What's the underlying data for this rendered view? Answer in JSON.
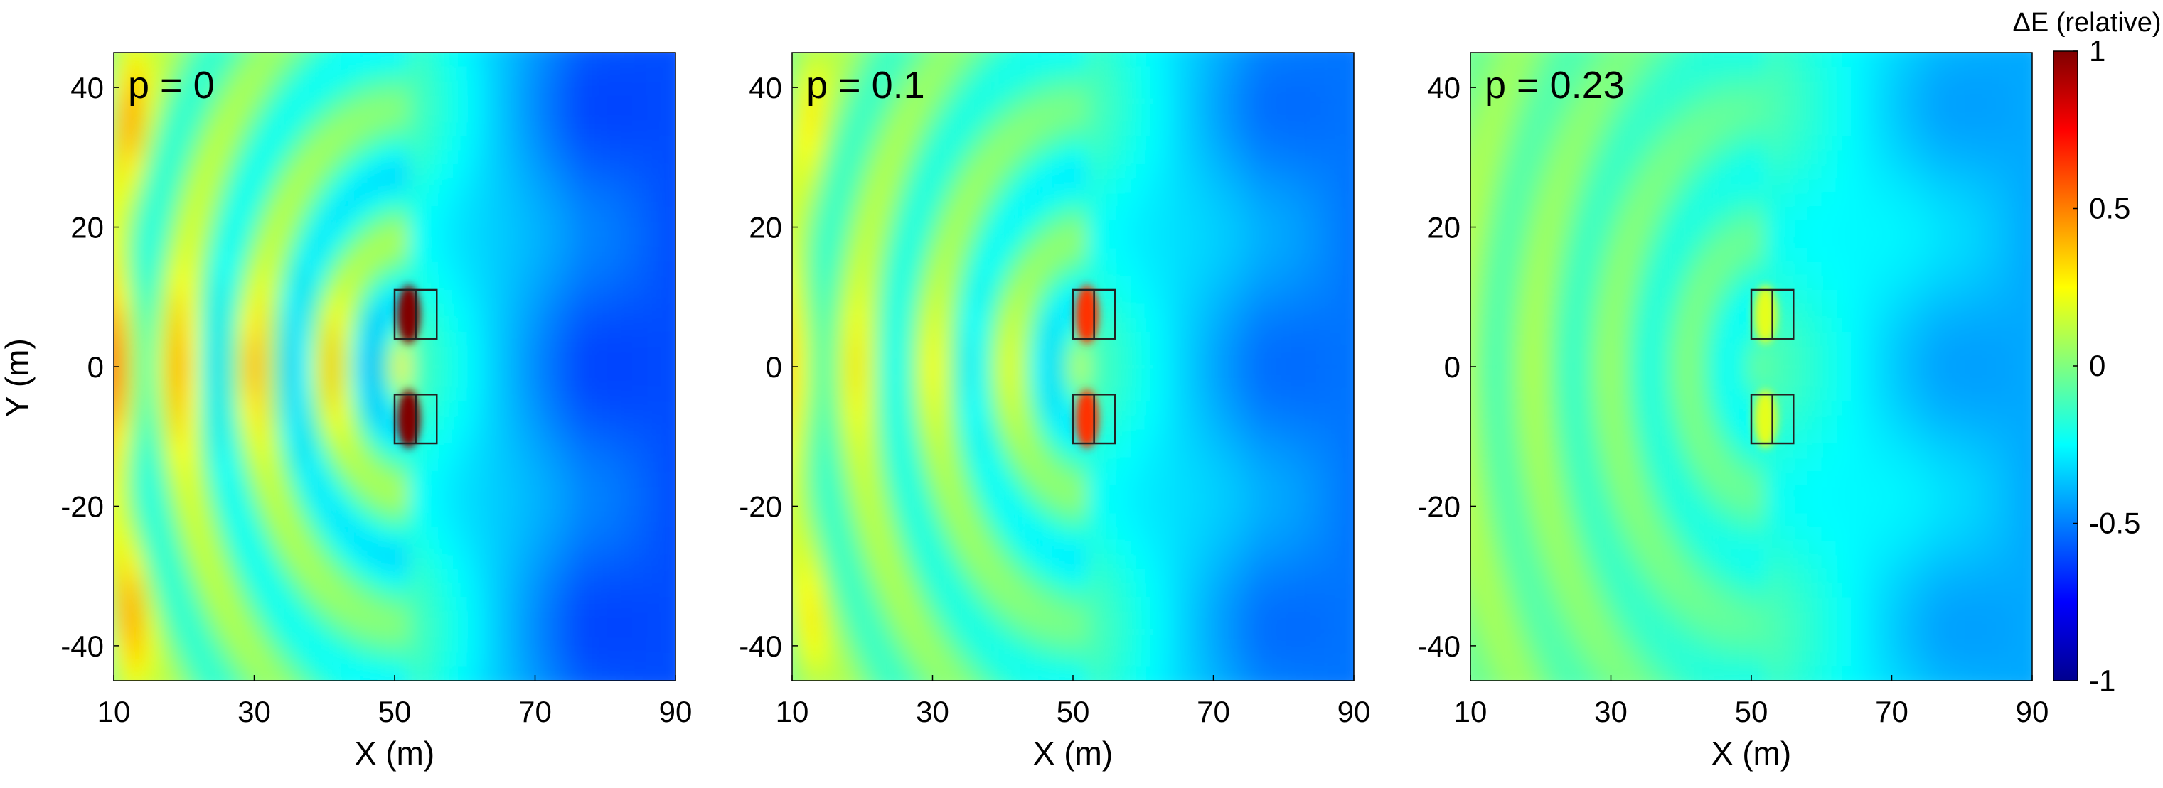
{
  "chart_data": [
    {
      "type": "heatmap",
      "title": "p = 0",
      "xlabel": "X (m)",
      "ylabel": "Y (m)",
      "xlim": [
        10,
        90
      ],
      "ylim": [
        -45,
        45
      ],
      "xticks": [
        "10",
        "30",
        "50",
        "70",
        "90"
      ],
      "yticks": [
        "40",
        "20",
        "0",
        "-20",
        "-40"
      ],
      "p": 0,
      "peak_value": 1.0,
      "wave_crest_x": [
        12,
        20,
        30,
        41
      ],
      "structures": [
        {
          "x_range": [
            50,
            56
          ],
          "y_range": [
            4,
            11
          ],
          "divider_x": 53
        },
        {
          "x_range": [
            50,
            56
          ],
          "y_range": [
            -11,
            -4
          ],
          "divider_x": 53
        }
      ]
    },
    {
      "type": "heatmap",
      "title": "p = 0.1",
      "xlabel": "X (m)",
      "ylabel": "",
      "xlim": [
        10,
        90
      ],
      "ylim": [
        -45,
        45
      ],
      "xticks": [
        "10",
        "30",
        "50",
        "70",
        "90"
      ],
      "yticks": [
        "40",
        "20",
        "0",
        "-20",
        "-40"
      ],
      "p": 0.1,
      "peak_value": 0.65,
      "structures": [
        {
          "x_range": [
            50,
            56
          ],
          "y_range": [
            4,
            11
          ],
          "divider_x": 53
        },
        {
          "x_range": [
            50,
            56
          ],
          "y_range": [
            -11,
            -4
          ],
          "divider_x": 53
        }
      ]
    },
    {
      "type": "heatmap",
      "title": "p = 0.23",
      "xlabel": "X (m)",
      "ylabel": "",
      "xlim": [
        10,
        90
      ],
      "ylim": [
        -45,
        45
      ],
      "xticks": [
        "10",
        "30",
        "50",
        "70",
        "90"
      ],
      "yticks": [
        "40",
        "20",
        "0",
        "-20",
        "-40"
      ],
      "p": 0.23,
      "peak_value": 0.2,
      "structures": [
        {
          "x_range": [
            50,
            56
          ],
          "y_range": [
            4,
            11
          ],
          "divider_x": 53
        },
        {
          "x_range": [
            50,
            56
          ],
          "y_range": [
            -11,
            -4
          ],
          "divider_x": 53
        }
      ]
    }
  ],
  "colorbar": {
    "title": "ΔE (relative)",
    "range": [
      -1,
      1
    ],
    "ticks": [
      "1",
      "0.5",
      "0",
      "-0.5",
      "-1"
    ],
    "tick_values": [
      1,
      0.5,
      0,
      -0.5,
      -1
    ],
    "colormap": "jet"
  },
  "colors": {
    "jet_stops": [
      "#00008f",
      "#0000ff",
      "#00ffff",
      "#ffff00",
      "#ff0000",
      "#800000"
    ],
    "structure_outline": "#222222"
  }
}
